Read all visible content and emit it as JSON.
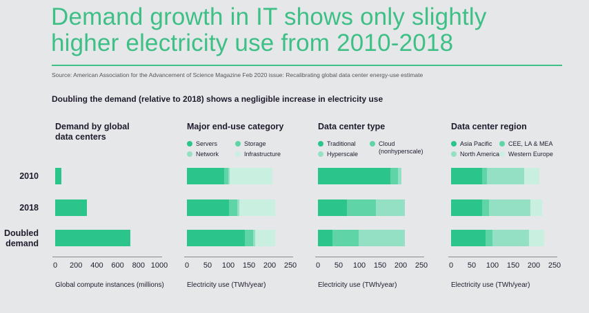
{
  "title": "Demand growth in IT shows only slightly higher electricity use from 2010-2018",
  "title_lines": [
    "Demand growth in IT shows only slightly",
    "higher electricity use from 2010-2018"
  ],
  "source": "Source: American Association for the Advancement of Science Magazine Feb 2020 issue: Recalibrating global data center energy-use estimate",
  "subtitle": "Doubling the demand (relative to 2018) shows a negligible increase in electricity use",
  "colors": {
    "title": "#3dbf86",
    "c1": "#2bc48a",
    "c2": "#5fd4a7",
    "c3": "#94e0c5",
    "c4": "#c9efe1"
  },
  "row_labels": [
    "2010",
    "2018",
    "Doubled demand"
  ],
  "chart_data": [
    {
      "type": "bar",
      "title": "Demand by global data centers",
      "xlabel": "Global compute instances (millions)",
      "categories": [
        "2010",
        "2018",
        "Doubled demand"
      ],
      "xlim": [
        0,
        1000
      ],
      "ticks": [
        0,
        200,
        400,
        600,
        800,
        1000
      ],
      "series": [
        {
          "values": [
            60,
            305,
            720
          ]
        }
      ]
    },
    {
      "type": "bar",
      "stacked": true,
      "title": "Major end-use category",
      "xlabel": "Electricity use (TWh/year)",
      "categories": [
        "2010",
        "2018",
        "Doubled demand"
      ],
      "xlim": [
        0,
        250
      ],
      "ticks": [
        0,
        50,
        100,
        150,
        200,
        250
      ],
      "series": [
        {
          "name": "Servers",
          "values": [
            90,
            101,
            140
          ]
        },
        {
          "name": "Storage",
          "values": [
            10,
            20,
            20
          ]
        },
        {
          "name": "Network",
          "values": [
            3,
            5,
            5
          ]
        },
        {
          "name": "Infrastructure",
          "values": [
            103,
            88,
            49
          ]
        }
      ]
    },
    {
      "type": "bar",
      "stacked": true,
      "title": "Data center type",
      "xlabel": "Electricity use (TWh/year)",
      "categories": [
        "2010",
        "2018",
        "Doubled demand"
      ],
      "xlim": [
        0,
        250
      ],
      "ticks": [
        0,
        50,
        100,
        150,
        200,
        250
      ],
      "series": [
        {
          "name": "Traditional",
          "values": [
            175,
            70,
            35
          ]
        },
        {
          "name": "Cloud (nonhyperscale)",
          "values": [
            18,
            70,
            63
          ]
        },
        {
          "name": "Hyperscale",
          "values": [
            8,
            70,
            112
          ]
        }
      ]
    },
    {
      "type": "bar",
      "stacked": true,
      "title": "Data center region",
      "xlabel": "Electricity use (TWh/year)",
      "categories": [
        "2010",
        "2018",
        "Doubled demand"
      ],
      "xlim": [
        0,
        250
      ],
      "ticks": [
        0,
        50,
        100,
        150,
        200,
        250
      ],
      "series": [
        {
          "name": "Asia Pacific",
          "values": [
            75,
            75,
            83
          ]
        },
        {
          "name": "CEE, LA & MEA",
          "values": [
            12,
            17,
            17
          ]
        },
        {
          "name": "North America",
          "values": [
            90,
            100,
            88
          ]
        },
        {
          "name": "Western Europe",
          "values": [
            37,
            28,
            37
          ]
        }
      ]
    }
  ]
}
